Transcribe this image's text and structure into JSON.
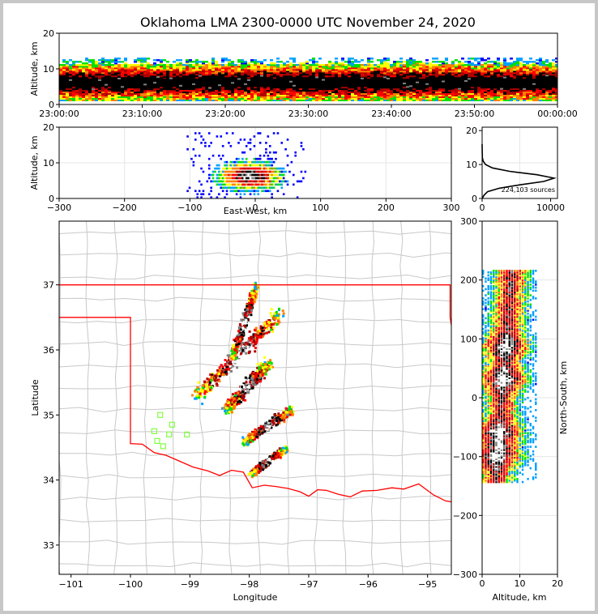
{
  "chart_data": {
    "type": "heatmap",
    "title": "Oklahoma LMA 2300-0000 UTC November 24, 2020",
    "colors": {
      "density": [
        "#0000ff",
        "#00a0ff",
        "#00e000",
        "#ffff00",
        "#ff8000",
        "#ff0000",
        "#b00000",
        "#000000",
        "#808080",
        "#ffffff"
      ],
      "state_border": "#ff0000",
      "county_lines": "#c8c8c8",
      "stations": "#80ff40"
    },
    "panels": [
      {
        "id": "time_altitude",
        "xlabel": "",
        "ylabel": "Altitude, km",
        "xticks": [
          "23:00:00",
          "23:10:00",
          "23:20:00",
          "23:30:00",
          "23:40:00",
          "23:50:00",
          "00:00:00"
        ],
        "yticks": [
          "0",
          "10",
          "20"
        ],
        "xlim": [
          "23:00:00",
          "00:00:00"
        ],
        "ylim": [
          0,
          20
        ],
        "band_km": [
          1,
          13
        ],
        "core_km": [
          3,
          9
        ]
      },
      {
        "id": "eastwest_altitude",
        "xlabel": "East-West, km",
        "ylabel": "Altitude, km",
        "xticks": [
          "−300",
          "−200",
          "−100",
          "0",
          "100",
          "200",
          "300"
        ],
        "yticks": [
          "0",
          "10",
          "20"
        ],
        "xlim": [
          -300,
          300
        ],
        "ylim": [
          0,
          20
        ],
        "cluster": {
          "x_km": [
            -105,
            75
          ],
          "z_km": [
            0,
            18
          ],
          "core_x": -10,
          "core_z": 6
        }
      },
      {
        "id": "altitude_histogram",
        "xticks": [
          "0",
          "10000"
        ],
        "yticks": [
          "0",
          "10",
          "20"
        ],
        "xlim": [
          0,
          11000
        ],
        "ylim": [
          0,
          21
        ],
        "profile": [
          [
            0,
            0
          ],
          [
            300,
            1
          ],
          [
            800,
            2
          ],
          [
            2500,
            3
          ],
          [
            5500,
            4
          ],
          [
            9000,
            5
          ],
          [
            10500,
            6
          ],
          [
            8000,
            7
          ],
          [
            4000,
            8
          ],
          [
            1500,
            9
          ],
          [
            500,
            10
          ],
          [
            150,
            11
          ],
          [
            40,
            12
          ],
          [
            10,
            14
          ],
          [
            0,
            16
          ]
        ],
        "annotation": "224,103 sources"
      },
      {
        "id": "plan_view_map",
        "xlabel": "Longitude",
        "ylabel": "Latitude",
        "xticks": [
          "−101",
          "−100",
          "−99",
          "−98",
          "−97",
          "−96",
          "−95"
        ],
        "yticks": [
          "33",
          "34",
          "35",
          "36",
          "37"
        ],
        "xlim": [
          -101.2,
          -94.6
        ],
        "ylim": [
          32.55,
          37.98
        ],
        "stations": [
          [
            -99.5,
            35.0
          ],
          [
            -99.3,
            34.85
          ],
          [
            -99.6,
            34.75
          ],
          [
            -99.35,
            34.7
          ],
          [
            -99.55,
            34.6
          ],
          [
            -99.45,
            34.52
          ],
          [
            -99.05,
            34.7
          ]
        ],
        "storm_segments": [
          {
            "lon": [
              -98.9,
              -97.5
            ],
            "lat": [
              35.3,
              36.6
            ],
            "w": 0.22
          },
          {
            "lon": [
              -98.4,
              -97.7
            ],
            "lat": [
              35.1,
              35.8
            ],
            "w": 0.18
          },
          {
            "lon": [
              -98.1,
              -97.3
            ],
            "lat": [
              34.6,
              35.1
            ],
            "w": 0.12
          },
          {
            "lon": [
              -98.0,
              -97.4
            ],
            "lat": [
              34.1,
              34.5
            ],
            "w": 0.1
          },
          {
            "lon": [
              -98.3,
              -97.9
            ],
            "lat": [
              35.9,
              37.0
            ],
            "w": 0.1
          }
        ]
      },
      {
        "id": "altitude_northsouth",
        "xlabel": "Altitude, km",
        "ylabel": "North-South, km",
        "xticks": [
          "0",
          "10",
          "20"
        ],
        "yticks": [
          "−300",
          "−200",
          "−100",
          "0",
          "100",
          "200",
          "300"
        ],
        "xlim": [
          0,
          20
        ],
        "ylim": [
          -300,
          300
        ],
        "cluster": {
          "y_km": [
            -145,
            215
          ],
          "alt_km": [
            0,
            14
          ]
        }
      }
    ]
  }
}
